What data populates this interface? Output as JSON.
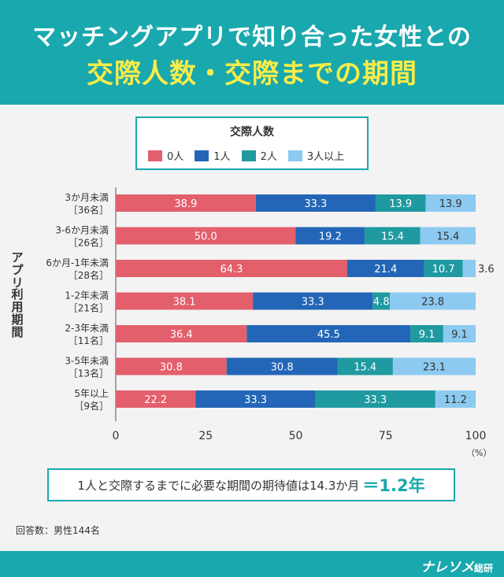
{
  "header": {
    "title_line1": "マッチングアプリで知り合った女性との",
    "title_line2": "交際人数・交際までの期間"
  },
  "legend": {
    "title": "交際人数",
    "items": [
      {
        "label": "0人",
        "color": "#e35f6c"
      },
      {
        "label": "1人",
        "color": "#2366b7"
      },
      {
        "label": "2人",
        "color": "#1f9aa0"
      },
      {
        "label": "3人以上",
        "color": "#8ccaf1"
      }
    ]
  },
  "chart_data": {
    "type": "bar",
    "orientation": "horizontal",
    "stacked": true,
    "ylabel": "アプリ利用期間",
    "xunit": "（%）",
    "xlim": [
      0,
      100
    ],
    "xticks": [
      0,
      25,
      50,
      75,
      100
    ],
    "categories": [
      {
        "label": "3か月未満",
        "n": "［36名］"
      },
      {
        "label": "3-6か月未満",
        "n": "［26名］"
      },
      {
        "label": "6か月-1年未満",
        "n": "［28名］"
      },
      {
        "label": "1-2年未満",
        "n": "［21名］"
      },
      {
        "label": "2-3年未満",
        "n": "［11名］"
      },
      {
        "label": "3-5年未満",
        "n": "［13名］"
      },
      {
        "label": "5年以上",
        "n": "［9名］"
      }
    ],
    "series": [
      {
        "name": "0人",
        "values": [
          38.9,
          50.0,
          64.3,
          38.1,
          36.4,
          30.8,
          22.2
        ]
      },
      {
        "name": "1人",
        "values": [
          33.3,
          19.2,
          21.4,
          33.3,
          45.5,
          30.8,
          33.3
        ]
      },
      {
        "name": "2人",
        "values": [
          13.9,
          15.4,
          10.7,
          4.8,
          9.1,
          15.4,
          33.3
        ]
      },
      {
        "name": "3人以上",
        "values": [
          13.9,
          15.4,
          3.6,
          23.8,
          9.1,
          23.1,
          11.2
        ]
      }
    ]
  },
  "note": {
    "text": "1人と交際するまでに必要な期間の期待値は14.3か月",
    "highlight": "＝1.2年"
  },
  "respondents": "回答数：男性144名",
  "brand": {
    "name": "ナレソメ",
    "suffix": "総研"
  }
}
